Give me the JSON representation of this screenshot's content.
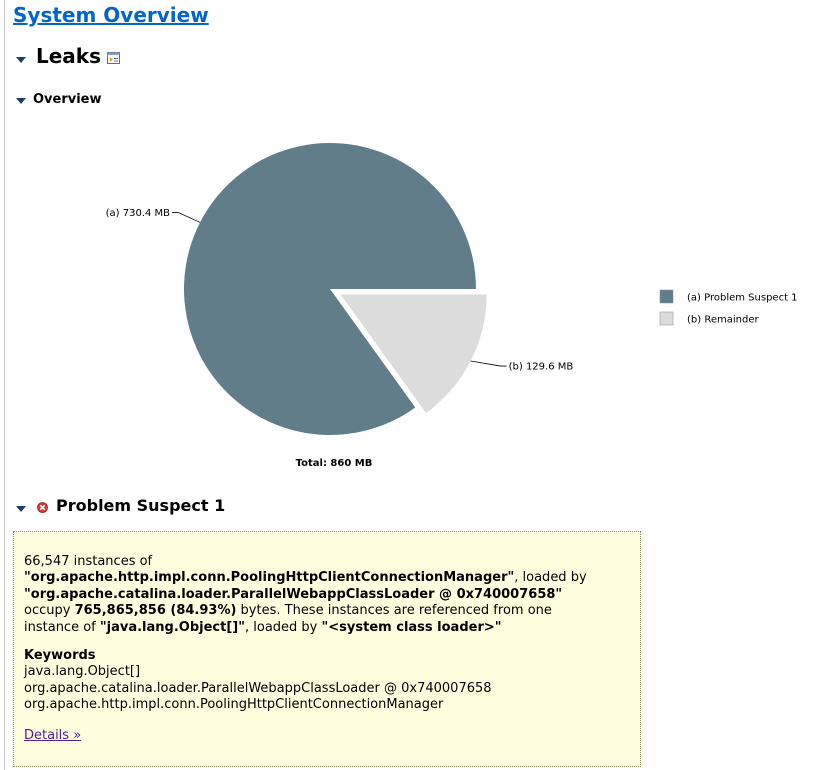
{
  "page": {
    "title": "System Overview"
  },
  "leaks": {
    "heading": "Leaks"
  },
  "overview": {
    "heading": "Overview"
  },
  "chart_data": {
    "type": "pie",
    "title": "",
    "total_label": "Total: 860 MB",
    "slices": [
      {
        "label": "(a)  730.4 MB",
        "value": 730.4,
        "legend": "(a)  Problem Suspect 1",
        "color": "#617d8a",
        "exploded": false
      },
      {
        "label": "(b)  129.6 MB",
        "value": 129.6,
        "legend": "(b)  Remainder",
        "color": "#dcdcdc",
        "exploded": true
      }
    ],
    "legend_position": "right"
  },
  "suspect": {
    "heading": "Problem Suspect 1",
    "line1": "66,547 instances of",
    "class_name": "\"org.apache.http.impl.conn.PoolingHttpClientConnectionManager\"",
    "loaded_by_1": ", loaded by",
    "loader": "\"org.apache.catalina.loader.ParallelWebappClassLoader @ 0x740007658\"",
    "occupy": "occupy ",
    "size": "765,865,856 (84.93%)",
    "after_size": " bytes. These instances are referenced from one",
    "instance_of": "instance of ",
    "ref_class": "\"java.lang.Object[]\"",
    "loaded_by_2": ", loaded by ",
    "ref_loader": "\"<system class loader>\"",
    "keywords_title": "Keywords",
    "keywords": [
      "java.lang.Object[]",
      "org.apache.catalina.loader.ParallelWebappClassLoader @ 0x740007658",
      "org.apache.http.impl.conn.PoolingHttpClientConnectionManager"
    ],
    "details_link": "Details »"
  },
  "colors": {
    "link": "#0066cc",
    "visited_link": "#551a8b",
    "suspect_bg": "#ffffe0",
    "slice_a": "#617d8a",
    "slice_b": "#dcdcdc"
  }
}
